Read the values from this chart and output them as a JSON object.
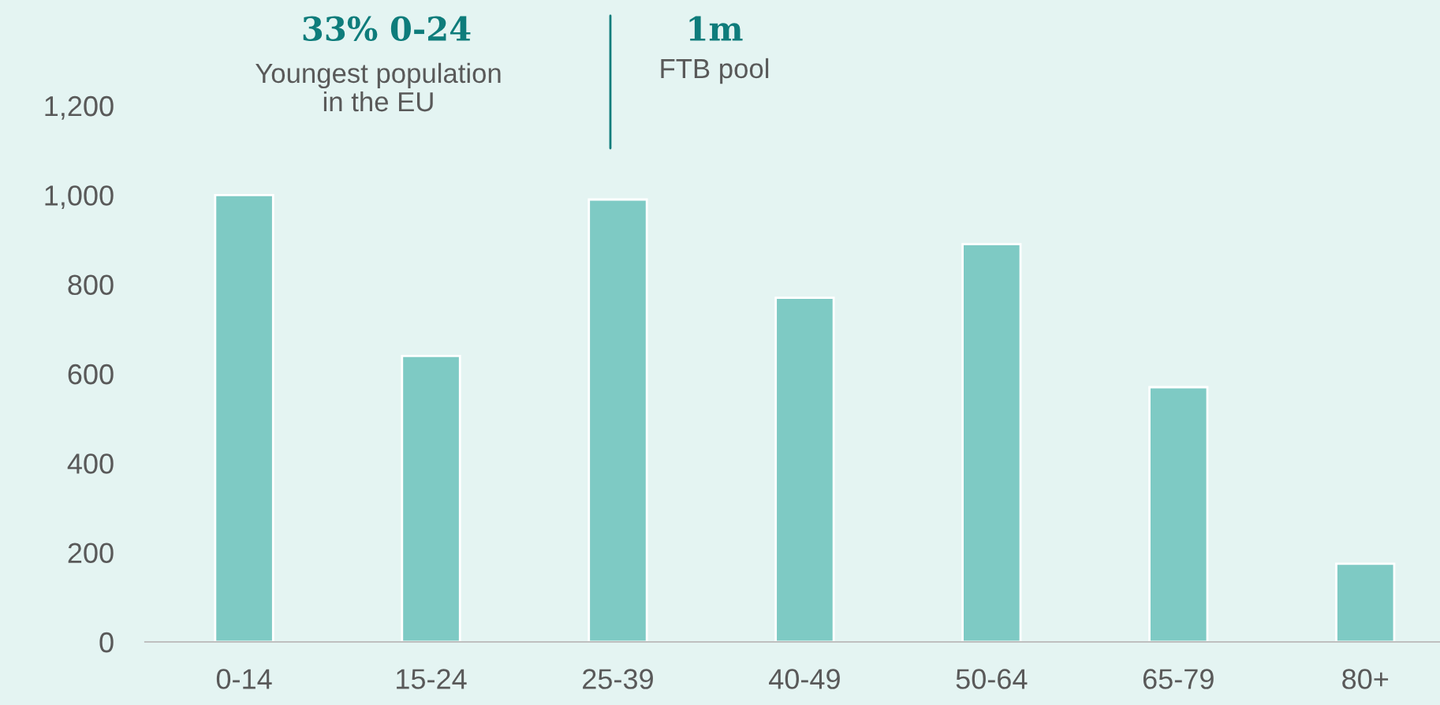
{
  "chart_data": {
    "type": "bar",
    "categories": [
      "0-14",
      "15-24",
      "25-39",
      "40-49",
      "50-64",
      "65-79",
      "80+"
    ],
    "values": [
      1000,
      640,
      990,
      770,
      890,
      570,
      175
    ],
    "color": "#7ecac4",
    "ylim": [
      0,
      1200
    ],
    "yticks": [
      0,
      {
        "value": 200,
        "label": "200"
      },
      {
        "value": 400,
        "label": "400"
      },
      {
        "value": 600,
        "label": "600"
      },
      {
        "value": 800,
        "label": "800"
      },
      {
        "value": 1000,
        "label": "1,000"
      },
      {
        "value": 1200,
        "label": "1,200"
      }
    ],
    "annotations": [
      "33% 0-24",
      "Youngest population\nin the EU",
      "1m",
      "FTB pool"
    ],
    "grid": false,
    "legend": false
  }
}
